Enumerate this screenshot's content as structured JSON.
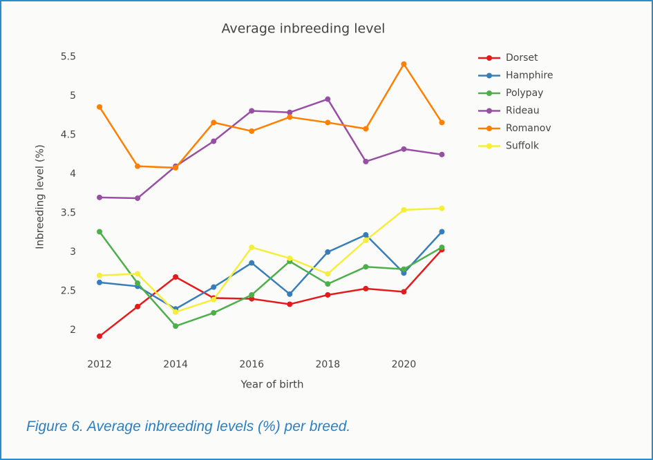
{
  "chart_data": {
    "type": "line",
    "title": "Average inbreeding level",
    "x_label": "Year of birth",
    "y_label": "Inbreeding level (%)",
    "x": [
      2012,
      2013,
      2014,
      2015,
      2016,
      2017,
      2018,
      2019,
      2020,
      2021
    ],
    "xlim": [
      2011.6,
      2021.5
    ],
    "xticks": [
      2012,
      2014,
      2016,
      2018,
      2020
    ],
    "ylim": [
      1.75,
      5.7
    ],
    "yticks": [
      2,
      2.5,
      3,
      3.5,
      4,
      4.5,
      5,
      5.5
    ],
    "grid": false,
    "legend": "right",
    "series": [
      {
        "name": "Dorset",
        "color": "#e41a1c",
        "values": [
          1.92,
          2.3,
          2.68,
          2.41,
          2.4,
          2.33,
          2.45,
          2.53,
          2.49,
          3.03
        ]
      },
      {
        "name": "Hamphire",
        "color": "#377eb8",
        "values": [
          2.61,
          2.56,
          2.27,
          2.55,
          2.86,
          2.46,
          3.0,
          3.22,
          2.73,
          3.26
        ]
      },
      {
        "name": "Polypay",
        "color": "#4daf4a",
        "values": [
          3.26,
          2.6,
          2.05,
          2.22,
          2.45,
          2.88,
          2.59,
          2.81,
          2.78,
          3.06
        ]
      },
      {
        "name": "Rideau",
        "color": "#984ea3",
        "values": [
          3.7,
          3.69,
          4.1,
          4.42,
          4.81,
          4.79,
          4.96,
          4.16,
          4.32,
          4.25
        ]
      },
      {
        "name": "Romanov",
        "color": "#ff7f00",
        "values": [
          4.86,
          4.1,
          4.08,
          4.66,
          4.55,
          4.73,
          4.66,
          4.58,
          5.41,
          4.66
        ]
      },
      {
        "name": "Suffolk",
        "color": "#f5ee3a",
        "values": [
          2.7,
          2.72,
          2.23,
          2.39,
          3.06,
          2.92,
          2.72,
          3.15,
          3.54,
          3.56
        ]
      }
    ]
  },
  "caption": "Figure 6. Average inbreeding levels (%) per breed."
}
